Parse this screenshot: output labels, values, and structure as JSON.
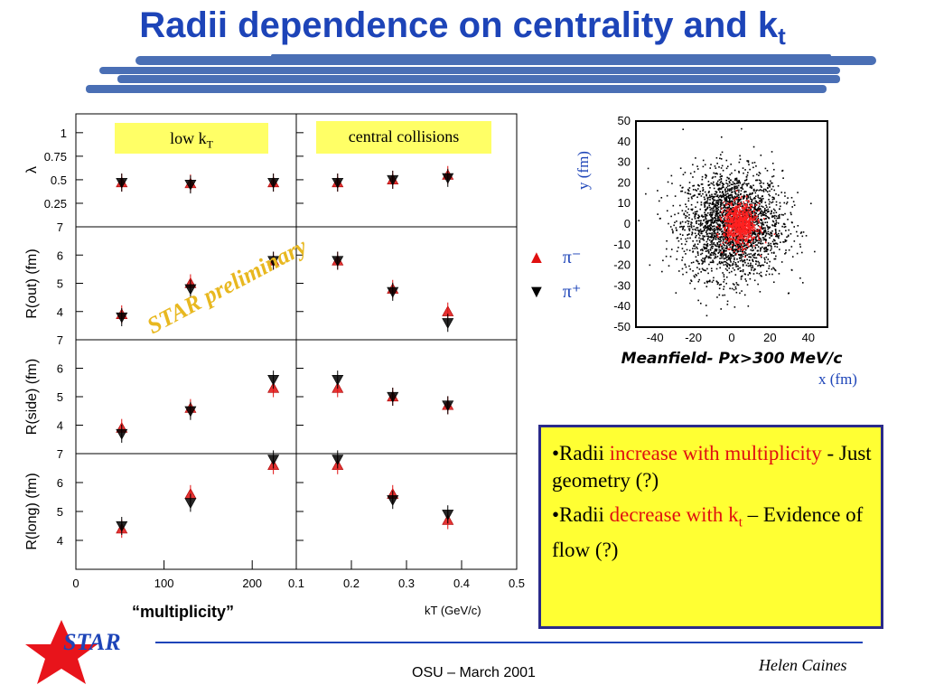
{
  "slide": {
    "title_main": "Radii dependence on centrality and k",
    "title_sub": "t",
    "footer": "OSU – March 2001",
    "author": "Helen Caines",
    "logo_text": "STAR",
    "watermark": "STAR preliminary",
    "multiplicity_label": "“multiplicity”"
  },
  "panels": {
    "low_kt_main": "low k",
    "low_kt_sub": "T",
    "central_label": "central collisions",
    "ylabels": [
      "λ",
      "R(out) (fm)",
      "R(side) (fm)",
      "R(long) (fm)"
    ],
    "lambda_ticks": [
      "1",
      "0.75",
      "0.5",
      "0.25"
    ],
    "r_ticks": [
      "7",
      "6",
      "5",
      "4"
    ],
    "x_ticks_left": [
      "0",
      "100",
      "200"
    ],
    "x_ticks_right": [
      "0.1",
      "0.2",
      "0.3",
      "0.4",
      "0.5"
    ],
    "xlabel_right": "k",
    "xlabel_right_sub": "T",
    "xlabel_right_unit": "(GeV/c)"
  },
  "legend": {
    "pi_minus": "π⁻",
    "pi_plus": "π⁺",
    "pi_minus_color": "#e01010",
    "pi_plus_color": "#000000"
  },
  "emission": {
    "y_axis": "y (fm)",
    "x_axis": "x (fm)",
    "caption": "Meanfield- Px>300 MeV/c",
    "y_ticks": [
      "50",
      "40",
      "30",
      "20",
      "10",
      "0",
      "-10",
      "-20",
      "-30",
      "-40",
      "-50"
    ],
    "x_ticks": [
      "-40",
      "-20",
      "0",
      "20",
      "40"
    ]
  },
  "bullets": {
    "b1_pre": "•Radii ",
    "b1_red": "increase with multiplicity",
    "b1_post": "  - Just geometry (?)",
    "b2_pre": "•Radii ",
    "b2_red": "decrease with k",
    "b2_red_sub": "t",
    "b2_post": " – Evidence of flow (?)"
  },
  "chart_data": [
    {
      "type": "scatter",
      "title": "low kT",
      "xlabel": "“multiplicity”",
      "x": [
        52,
        130,
        224
      ],
      "xlim": [
        0,
        250
      ],
      "series": [
        {
          "name": "π⁻",
          "lambda": [
            0.47,
            0.46,
            0.47
          ],
          "Rout": [
            3.9,
            5.0,
            5.8
          ],
          "Rside": [
            3.9,
            4.6,
            5.3
          ],
          "Rlong": [
            4.4,
            5.6,
            6.6
          ]
        },
        {
          "name": "π⁺",
          "lambda": [
            0.47,
            0.45,
            0.47
          ],
          "Rout": [
            3.8,
            4.8,
            5.8
          ],
          "Rside": [
            3.7,
            4.5,
            5.6
          ],
          "Rlong": [
            4.5,
            5.3,
            6.8
          ]
        }
      ],
      "ylim_lambda": [
        0,
        1.2
      ],
      "ylim_R": [
        3,
        7
      ]
    },
    {
      "type": "scatter",
      "title": "central collisions",
      "xlabel": "kT (GeV/c)",
      "x": [
        0.175,
        0.275,
        0.375
      ],
      "xlim": [
        0.1,
        0.5
      ],
      "series": [
        {
          "name": "π⁻",
          "lambda": [
            0.47,
            0.5,
            0.55
          ],
          "Rout": [
            5.8,
            4.8,
            4.0
          ],
          "Rside": [
            5.3,
            5.0,
            4.7
          ],
          "Rlong": [
            6.6,
            5.6,
            4.7
          ]
        },
        {
          "name": "π⁺",
          "lambda": [
            0.47,
            0.5,
            0.52
          ],
          "Rout": [
            5.8,
            4.7,
            3.6
          ],
          "Rside": [
            5.6,
            5.0,
            4.7
          ],
          "Rlong": [
            6.8,
            5.4,
            4.9
          ]
        }
      ],
      "ylim_lambda": [
        0,
        1.2
      ],
      "ylim_R": [
        3,
        7
      ]
    }
  ]
}
